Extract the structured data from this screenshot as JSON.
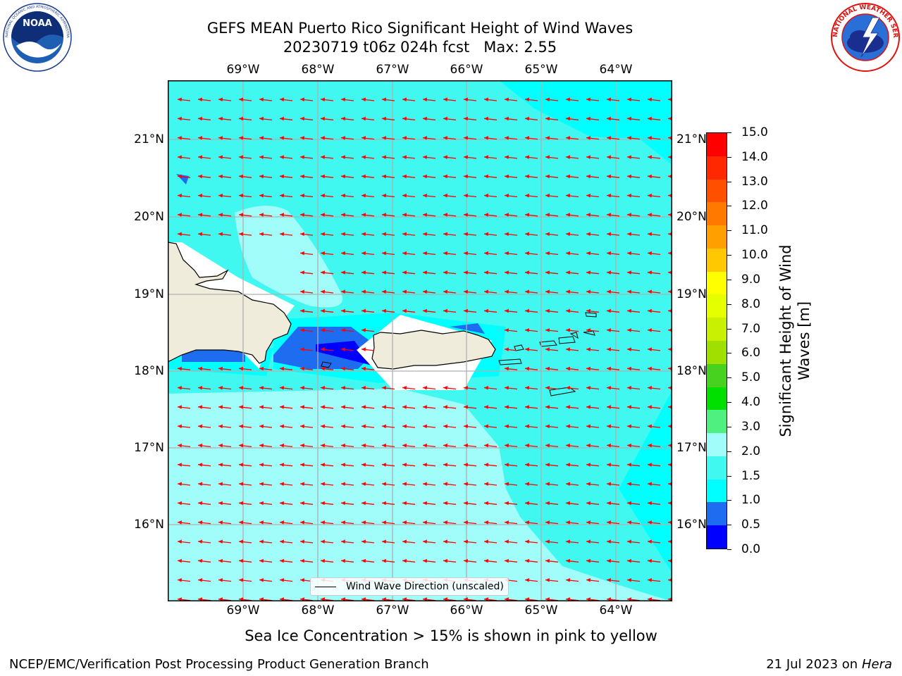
{
  "title": {
    "line1": "GEFS MEAN Puerto Rico Significant Height of Wind Waves",
    "line2": "20230719 t06z 024h fcst   Max: 2.55"
  },
  "logos": {
    "left": {
      "name": "noaa-logo",
      "text": "NOAA",
      "ring_text": "NATIONAL OCEANIC AND ATMOSPHERIC ADMINISTRATION · U.S. DEPARTMENT OF COMMERCE"
    },
    "right": {
      "name": "nws-logo",
      "ring_text": "NATIONAL WEATHER SERVICE"
    }
  },
  "map": {
    "lon_labels": [
      "69°W",
      "68°W",
      "67°W",
      "66°W",
      "65°W",
      "64°W"
    ],
    "lat_labels": [
      "21°N",
      "20°N",
      "19°N",
      "18°N",
      "17°N",
      "16°N"
    ],
    "legend": "Wind Wave Direction (unscaled)",
    "arrow_color": "#ff0000",
    "land_color": "#efecdc",
    "grid_color": "#b0b0b0"
  },
  "colorbar": {
    "title": "Significant Height of Wind Waves [m]",
    "tick_labels": [
      "0.0",
      "0.5",
      "1.0",
      "1.5",
      "2.0",
      "3.0",
      "4.0",
      "5.0",
      "6.0",
      "7.0",
      "8.0",
      "9.0",
      "10.0",
      "11.0",
      "12.0",
      "13.0",
      "14.0",
      "15.0"
    ],
    "colors": [
      "#0000ff",
      "#1e6cf0",
      "#00ffff",
      "#40f8f0",
      "#a0fdfa",
      "#50f080",
      "#00e000",
      "#46d21e",
      "#a0e000",
      "#c8f000",
      "#e6ff00",
      "#ffff00",
      "#ffc800",
      "#ffa000",
      "#ff7800",
      "#ff5000",
      "#ff2800",
      "#ff0000"
    ]
  },
  "subtitle": "Sea Ice Concentration > 15% is shown in pink to yellow",
  "footer": {
    "left": "NCEP/EMC/Verification Post Processing Product Generation Branch",
    "right_date": "21 Jul 2023 on ",
    "right_host": "Hera"
  }
}
